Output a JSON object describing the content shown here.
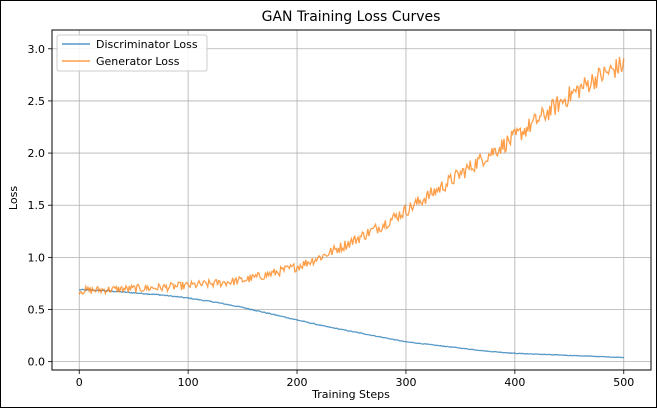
{
  "chart_data": {
    "type": "line",
    "title": "GAN Training Loss Curves",
    "xlabel": "Training Steps",
    "ylabel": "Loss",
    "xlim": [
      -25,
      525
    ],
    "ylim": [
      -0.08,
      3.18
    ],
    "xticks": [
      0,
      100,
      200,
      300,
      400,
      500
    ],
    "yticks": [
      0.0,
      0.5,
      1.0,
      1.5,
      2.0,
      2.5,
      3.0
    ],
    "grid": true,
    "legend_position": "top-left",
    "series": [
      {
        "name": "Discriminator Loss",
        "color": "#1f77b4",
        "x": [
          0,
          25,
          50,
          75,
          100,
          125,
          150,
          175,
          200,
          225,
          250,
          275,
          300,
          325,
          350,
          375,
          400,
          425,
          450,
          475,
          500
        ],
        "values": [
          0.69,
          0.68,
          0.66,
          0.64,
          0.61,
          0.57,
          0.52,
          0.46,
          0.4,
          0.34,
          0.29,
          0.24,
          0.19,
          0.16,
          0.13,
          0.1,
          0.08,
          0.07,
          0.06,
          0.05,
          0.04
        ],
        "noise": 0.008
      },
      {
        "name": "Generator Loss",
        "color": "#ff7f0e",
        "x": [
          0,
          25,
          50,
          75,
          100,
          125,
          150,
          175,
          200,
          225,
          250,
          275,
          300,
          325,
          350,
          375,
          400,
          425,
          450,
          475,
          500
        ],
        "values": [
          0.68,
          0.69,
          0.7,
          0.71,
          0.73,
          0.75,
          0.78,
          0.84,
          0.91,
          1.02,
          1.15,
          1.29,
          1.45,
          1.62,
          1.8,
          1.98,
          2.15,
          2.35,
          2.55,
          2.72,
          2.85
        ],
        "noise": 0.06
      }
    ]
  }
}
